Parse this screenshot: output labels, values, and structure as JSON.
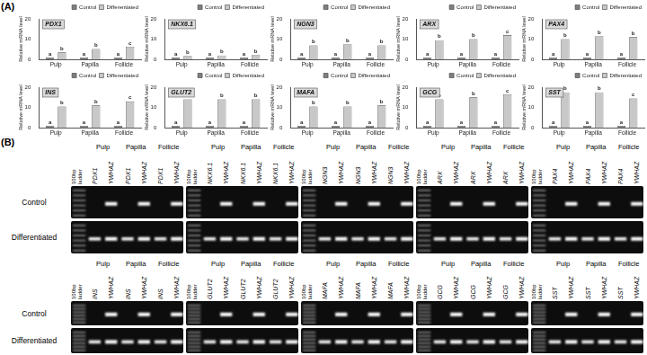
{
  "panel_labels": [
    "(A)",
    "(B)"
  ],
  "chart_data": [
    {
      "type": "bar",
      "title": "PDX1",
      "categories": [
        "Pulp",
        "Papilla",
        "Follicle"
      ],
      "y_label": "Relative mRNA level",
      "ylim": [
        0,
        20
      ],
      "yticks": [
        0,
        10,
        20
      ],
      "grid": false,
      "legend": "top",
      "series": [
        {
          "name": "Control",
          "color": "#7f7f7f",
          "values": [
            1,
            1,
            1
          ],
          "letters": [
            "a",
            "a",
            "a"
          ]
        },
        {
          "name": "Differentiated",
          "color": "#c8c8c8",
          "values": [
            3.5,
            5.2,
            6.3
          ],
          "letters": [
            "b",
            "b",
            "c"
          ]
        }
      ]
    },
    {
      "type": "bar",
      "title": "NKX6.1",
      "categories": [
        "Pulp",
        "Papilla",
        "Follicle"
      ],
      "y_label": "Relative mRNA level",
      "ylim": [
        0,
        20
      ],
      "yticks": [
        0,
        10,
        20
      ],
      "grid": false,
      "legend": "top",
      "series": [
        {
          "name": "Control",
          "color": "#7f7f7f",
          "values": [
            1,
            1,
            1
          ],
          "letters": [
            "a",
            "a",
            "a"
          ]
        },
        {
          "name": "Differentiated",
          "color": "#c8c8c8",
          "values": [
            1.8,
            2.0,
            2.2
          ],
          "letters": [
            "b",
            "b",
            "b"
          ]
        }
      ]
    },
    {
      "type": "bar",
      "title": "NGN3",
      "categories": [
        "Pulp",
        "Papilla",
        "Follicle"
      ],
      "y_label": "Relative mRNA level",
      "ylim": [
        0,
        20
      ],
      "yticks": [
        0,
        10,
        20
      ],
      "grid": false,
      "legend": "top",
      "series": [
        {
          "name": "Control",
          "color": "#7f7f7f",
          "values": [
            1,
            1,
            1
          ],
          "letters": [
            "a",
            "a",
            "a"
          ]
        },
        {
          "name": "Differentiated",
          "color": "#c8c8c8",
          "values": [
            7.0,
            7.5,
            7.0
          ],
          "letters": [
            "b",
            "b",
            "b"
          ]
        }
      ]
    },
    {
      "type": "bar",
      "title": "ARX",
      "categories": [
        "Pulp",
        "Papilla",
        "Follicle"
      ],
      "y_label": "Relative mRNA level",
      "ylim": [
        0,
        20
      ],
      "yticks": [
        0,
        10,
        20
      ],
      "grid": false,
      "legend": "top",
      "series": [
        {
          "name": "Control",
          "color": "#7f7f7f",
          "values": [
            1,
            1,
            1
          ],
          "letters": [
            "a",
            "a",
            "a"
          ]
        },
        {
          "name": "Differentiated",
          "color": "#c8c8c8",
          "values": [
            9.5,
            10.0,
            12.0
          ],
          "letters": [
            "b",
            "b",
            "c"
          ]
        }
      ]
    },
    {
      "type": "bar",
      "title": "PAX4",
      "categories": [
        "Pulp",
        "Papilla",
        "Follicle"
      ],
      "y_label": "Relative mRNA level",
      "ylim": [
        0,
        20
      ],
      "yticks": [
        0,
        10,
        20
      ],
      "grid": false,
      "legend": "top",
      "series": [
        {
          "name": "Control",
          "color": "#7f7f7f",
          "values": [
            1,
            1,
            1
          ],
          "letters": [
            "a",
            "a",
            "a"
          ]
        },
        {
          "name": "Differentiated",
          "color": "#c8c8c8",
          "values": [
            10.0,
            11.5,
            11.0
          ],
          "letters": [
            "b",
            "b",
            "b"
          ]
        }
      ]
    },
    {
      "type": "bar",
      "title": "INS",
      "categories": [
        "Pulp",
        "Papilla",
        "Follicle"
      ],
      "y_label": "Relative mRNA level",
      "ylim": [
        0,
        20
      ],
      "yticks": [
        0,
        10,
        20
      ],
      "grid": false,
      "legend": "top",
      "series": [
        {
          "name": "Control",
          "color": "#7f7f7f",
          "values": [
            1,
            1,
            1
          ],
          "letters": [
            "a",
            "a",
            "a"
          ]
        },
        {
          "name": "Differentiated",
          "color": "#c8c8c8",
          "values": [
            10.5,
            11.0,
            13.0
          ],
          "letters": [
            "b",
            "b",
            "c"
          ]
        }
      ]
    },
    {
      "type": "bar",
      "title": "GLUT2",
      "categories": [
        "Pulp",
        "Papilla",
        "Follicle"
      ],
      "y_label": "Relative mRNA level",
      "ylim": [
        0,
        20
      ],
      "yticks": [
        0,
        10,
        20
      ],
      "grid": false,
      "legend": "top",
      "series": [
        {
          "name": "Control",
          "color": "#7f7f7f",
          "values": [
            1,
            1,
            1
          ],
          "letters": [
            "a",
            "a",
            "a"
          ]
        },
        {
          "name": "Differentiated",
          "color": "#c8c8c8",
          "values": [
            14.0,
            14.0,
            14.0
          ],
          "letters": [
            "b",
            "b",
            "b"
          ]
        }
      ]
    },
    {
      "type": "bar",
      "title": "MAFA",
      "categories": [
        "Pulp",
        "Papilla",
        "Follicle"
      ],
      "y_label": "Relative mRNA level",
      "ylim": [
        0,
        20
      ],
      "yticks": [
        0,
        10,
        20
      ],
      "grid": false,
      "legend": "top",
      "series": [
        {
          "name": "Control",
          "color": "#7f7f7f",
          "values": [
            1,
            1,
            1
          ],
          "letters": [
            "a",
            "a",
            "a"
          ]
        },
        {
          "name": "Differentiated",
          "color": "#c8c8c8",
          "values": [
            10.5,
            10.5,
            11.0
          ],
          "letters": [
            "b",
            "b",
            "b"
          ]
        }
      ]
    },
    {
      "type": "bar",
      "title": "GCG",
      "categories": [
        "Pulp",
        "Papilla",
        "Follicle"
      ],
      "y_label": "Relative mRNA level",
      "ylim": [
        0,
        20
      ],
      "yticks": [
        0,
        10,
        20
      ],
      "grid": false,
      "legend": "top",
      "series": [
        {
          "name": "Control",
          "color": "#7f7f7f",
          "values": [
            1,
            1,
            1
          ],
          "letters": [
            "a",
            "a",
            "a"
          ]
        },
        {
          "name": "Differentiated",
          "color": "#c8c8c8",
          "values": [
            14.0,
            15.0,
            16.5
          ],
          "letters": [
            "b",
            "b",
            "c"
          ]
        }
      ]
    },
    {
      "type": "bar",
      "title": "SST",
      "categories": [
        "Pulp",
        "Papilla",
        "Follicle"
      ],
      "y_label": "Relative mRNA level",
      "ylim": [
        0,
        20
      ],
      "yticks": [
        0,
        10,
        20
      ],
      "grid": false,
      "legend": "top",
      "series": [
        {
          "name": "Control",
          "color": "#7f7f7f",
          "values": [
            1,
            1,
            1
          ],
          "letters": [
            "a",
            "a",
            "a"
          ]
        },
        {
          "name": "Differentiated",
          "color": "#c8c8c8",
          "values": [
            17.5,
            17.5,
            14.5
          ],
          "letters": [
            "b",
            "b",
            "c"
          ]
        }
      ]
    }
  ],
  "gel": {
    "ladder_label": [
      "100bp",
      "ladder"
    ],
    "sources": [
      "Pulp",
      "Papilla",
      "Follicle"
    ],
    "reference": "YWHAZ",
    "genes": [
      "PDX1",
      "NKX6.1",
      "NGN3",
      "ARX",
      "PAX4",
      "INS",
      "GLUT2",
      "MAFA",
      "GCG",
      "SST"
    ],
    "rows": [
      {
        "label": "Control",
        "gene_band": false,
        "reference_band": true
      },
      {
        "label": "Differentiated",
        "gene_band": true,
        "reference_band": true
      }
    ]
  }
}
